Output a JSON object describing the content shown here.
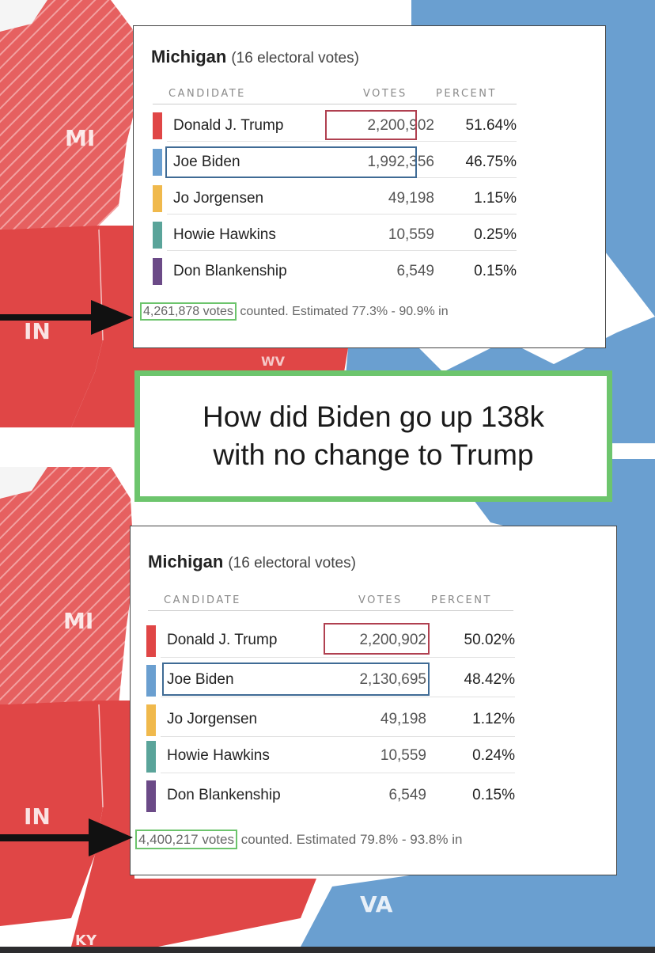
{
  "maps": {
    "top": {
      "labels": [
        "MI",
        "IN",
        "WV"
      ]
    },
    "bottom": {
      "labels": [
        "MI",
        "IN",
        "VA",
        "KY"
      ]
    }
  },
  "colors": {
    "republican": "#e04646",
    "democrat": "#6a9fd0",
    "libertarian": "#f0b94c",
    "green": "#5aa49a",
    "constitution": "#6b4a87",
    "highlight_green": "#6cc46c"
  },
  "top_panel": {
    "state": "Michigan",
    "electoral": "(16 electoral votes)",
    "headers": {
      "candidate": "CANDIDATE",
      "votes": "VOTES",
      "percent": "PERCENT"
    },
    "rows": [
      {
        "name": "Donald J. Trump",
        "votes": "2,200,902",
        "percent": "51.64%"
      },
      {
        "name": "Joe Biden",
        "votes": "1,992,356",
        "percent": "46.75%"
      },
      {
        "name": "Jo Jorgensen",
        "votes": "49,198",
        "percent": "1.15%"
      },
      {
        "name": "Howie Hawkins",
        "votes": "10,559",
        "percent": "0.25%"
      },
      {
        "name": "Don Blankenship",
        "votes": "6,549",
        "percent": "0.15%"
      }
    ],
    "total_votes": "4,261,878 votes",
    "footer_rest": "counted. Estimated 77.3% - 90.9% in"
  },
  "callout": {
    "line1": "How did Biden go up 138k",
    "line2": "with no change to Trump"
  },
  "bottom_panel": {
    "state": "Michigan",
    "electoral": "(16 electoral votes)",
    "headers": {
      "candidate": "CANDIDATE",
      "votes": "VOTES",
      "percent": "PERCENT"
    },
    "rows": [
      {
        "name": "Donald J. Trump",
        "votes": "2,200,902",
        "percent": "50.02%"
      },
      {
        "name": "Joe Biden",
        "votes": "2,130,695",
        "percent": "48.42%"
      },
      {
        "name": "Jo Jorgensen",
        "votes": "49,198",
        "percent": "1.12%"
      },
      {
        "name": "Howie Hawkins",
        "votes": "10,559",
        "percent": "0.24%"
      },
      {
        "name": "Don Blankenship",
        "votes": "6,549",
        "percent": "0.15%"
      }
    ],
    "total_votes": "4,400,217 votes",
    "footer_rest": "counted. Estimated 79.8% - 93.8% in"
  }
}
